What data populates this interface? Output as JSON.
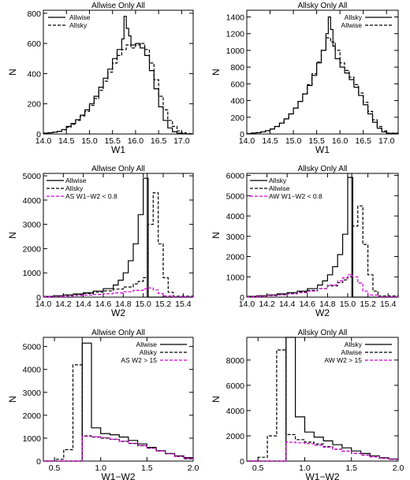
{
  "chart_data": [
    {
      "type": "line",
      "title": "Allwise Only All",
      "xlabel": "W1",
      "ylabel": "N",
      "xlim": [
        14.0,
        17.25
      ],
      "ylim": [
        0,
        820
      ],
      "xticks": [
        14.0,
        14.5,
        15.0,
        15.5,
        16.0,
        16.5,
        17.0
      ],
      "yticks": [
        0,
        200,
        400,
        600,
        800
      ],
      "xtick_labels": [
        "14.0",
        "14.5",
        "15.0",
        "15.5",
        "16.0",
        "16.5",
        "17.0"
      ],
      "ytick_labels": [
        "0",
        "200",
        "400",
        "600",
        "800"
      ],
      "legend_position": "top-left",
      "series": [
        {
          "name": "Allwise",
          "style": "solid",
          "color": "#000000",
          "x": [
            14.0,
            14.1,
            14.2,
            14.3,
            14.4,
            14.5,
            14.6,
            14.7,
            14.8,
            14.9,
            15.0,
            15.1,
            15.2,
            15.3,
            15.4,
            15.5,
            15.6,
            15.7,
            15.75,
            15.8,
            15.85,
            15.9,
            16.0,
            16.1,
            16.2,
            16.3,
            16.4,
            16.5,
            16.6,
            16.7,
            16.8,
            16.9,
            17.0,
            17.1,
            17.25
          ],
          "y": [
            5,
            8,
            12,
            18,
            30,
            50,
            70,
            95,
            125,
            160,
            200,
            250,
            310,
            370,
            430,
            500,
            560,
            630,
            780,
            700,
            650,
            590,
            600,
            570,
            520,
            420,
            300,
            180,
            90,
            40,
            15,
            5,
            2,
            0,
            0
          ]
        },
        {
          "name": "Allsky",
          "style": "dashed",
          "color": "#000000",
          "x": [
            14.0,
            14.1,
            14.2,
            14.3,
            14.4,
            14.5,
            14.6,
            14.7,
            14.8,
            14.9,
            15.0,
            15.1,
            15.2,
            15.3,
            15.4,
            15.5,
            15.6,
            15.7,
            15.8,
            15.9,
            16.0,
            16.1,
            16.2,
            16.3,
            16.4,
            16.5,
            16.6,
            16.7,
            16.8,
            16.9,
            17.0,
            17.1,
            17.25
          ],
          "y": [
            5,
            8,
            12,
            18,
            28,
            45,
            65,
            90,
            120,
            150,
            190,
            235,
            290,
            350,
            410,
            470,
            520,
            560,
            590,
            570,
            590,
            600,
            560,
            470,
            360,
            250,
            160,
            90,
            50,
            20,
            8,
            2,
            0
          ]
        }
      ]
    },
    {
      "type": "line",
      "title": "Allsky Only All",
      "xlabel": "W1",
      "ylabel": "N",
      "xlim": [
        14.0,
        17.25
      ],
      "ylim": [
        0,
        1480
      ],
      "xticks": [
        14.0,
        14.5,
        15.0,
        15.5,
        16.0,
        16.5,
        17.0
      ],
      "yticks": [
        0,
        200,
        400,
        600,
        800,
        1000,
        1200,
        1400
      ],
      "xtick_labels": [
        "14.0",
        "14.5",
        "15.0",
        "15.5",
        "16.0",
        "16.5",
        "17.0"
      ],
      "ytick_labels": [
        "0",
        "200",
        "400",
        "600",
        "800",
        "1000",
        "1200",
        "1400"
      ],
      "legend_position": "top-right",
      "series": [
        {
          "name": "Allsky",
          "style": "solid",
          "color": "#000000",
          "x": [
            14.0,
            14.1,
            14.2,
            14.3,
            14.4,
            14.5,
            14.6,
            14.7,
            14.8,
            14.9,
            15.0,
            15.1,
            15.2,
            15.3,
            15.4,
            15.5,
            15.6,
            15.7,
            15.75,
            15.8,
            15.85,
            15.9,
            16.0,
            16.1,
            16.2,
            16.3,
            16.4,
            16.5,
            16.6,
            16.7,
            16.8,
            16.9,
            17.0,
            17.25
          ],
          "y": [
            5,
            10,
            15,
            25,
            40,
            60,
            90,
            130,
            180,
            240,
            310,
            390,
            480,
            580,
            700,
            850,
            1000,
            1200,
            1400,
            1250,
            1050,
            900,
            800,
            730,
            650,
            560,
            460,
            350,
            240,
            140,
            70,
            25,
            8,
            0
          ]
        },
        {
          "name": "Allwise",
          "style": "dashed",
          "color": "#000000",
          "x": [
            14.0,
            14.1,
            14.2,
            14.3,
            14.4,
            14.5,
            14.6,
            14.7,
            14.8,
            14.9,
            15.0,
            15.1,
            15.2,
            15.3,
            15.4,
            15.5,
            15.6,
            15.7,
            15.8,
            15.9,
            16.0,
            16.1,
            16.2,
            16.3,
            16.4,
            16.5,
            16.6,
            16.7,
            16.8,
            16.9,
            17.0,
            17.25
          ],
          "y": [
            5,
            10,
            15,
            25,
            40,
            60,
            90,
            130,
            180,
            240,
            310,
            390,
            480,
            590,
            720,
            860,
            1000,
            1150,
            1100,
            1000,
            850,
            760,
            680,
            590,
            490,
            380,
            270,
            170,
            90,
            35,
            10,
            0
          ]
        }
      ]
    },
    {
      "type": "line",
      "title": "Allwise Only All",
      "xlabel": "W2",
      "ylabel": "N",
      "xlim": [
        14.0,
        15.5
      ],
      "ylim": [
        0,
        5100
      ],
      "xticks": [
        14.0,
        14.2,
        14.4,
        14.6,
        14.8,
        15.0,
        15.2,
        15.4
      ],
      "yticks": [
        0,
        1000,
        2000,
        3000,
        4000,
        5000
      ],
      "xtick_labels": [
        "14.0",
        "14.2",
        "14.4",
        "14.6",
        "14.8",
        "15.0",
        "15.2",
        "15.4"
      ],
      "ytick_labels": [
        "0",
        "1000",
        "2000",
        "3000",
        "4000",
        "5000"
      ],
      "vline": 15.04,
      "legend_position": "top-left",
      "series": [
        {
          "name": "Allwise",
          "style": "solid",
          "color": "#000000",
          "x": [
            14.0,
            14.1,
            14.2,
            14.3,
            14.4,
            14.5,
            14.6,
            14.7,
            14.75,
            14.8,
            14.85,
            14.9,
            14.95,
            15.0,
            15.05,
            15.1,
            15.5
          ],
          "y": [
            30,
            60,
            90,
            130,
            180,
            250,
            350,
            500,
            700,
            1000,
            1500,
            2200,
            3400,
            4900,
            0,
            0,
            0
          ]
        },
        {
          "name": "Allsky",
          "style": "dashed",
          "color": "#000000",
          "x": [
            14.0,
            14.1,
            14.2,
            14.3,
            14.4,
            14.5,
            14.6,
            14.7,
            14.8,
            14.9,
            14.95,
            15.0,
            15.05,
            15.1,
            15.15,
            15.2,
            15.25,
            15.3,
            15.5
          ],
          "y": [
            25,
            50,
            80,
            110,
            150,
            200,
            260,
            330,
            420,
            550,
            650,
            800,
            3000,
            4300,
            2200,
            800,
            200,
            40,
            0
          ]
        },
        {
          "name": "AS W1−W2 < 0.8",
          "style": "dashed",
          "color": "#d400d4",
          "x": [
            14.0,
            14.1,
            14.2,
            14.3,
            14.4,
            14.5,
            14.6,
            14.7,
            14.8,
            14.9,
            15.0,
            15.05,
            15.1,
            15.15,
            15.2,
            15.3,
            15.5
          ],
          "y": [
            15,
            30,
            45,
            65,
            85,
            110,
            140,
            175,
            220,
            280,
            340,
            380,
            300,
            150,
            50,
            10,
            0
          ]
        }
      ]
    },
    {
      "type": "line",
      "title": "Allsky Only All",
      "xlabel": "W2",
      "ylabel": "N",
      "xlim": [
        14.0,
        15.5
      ],
      "ylim": [
        0,
        6100
      ],
      "xticks": [
        14.0,
        14.2,
        14.4,
        14.6,
        14.8,
        15.0,
        15.2,
        15.4
      ],
      "yticks": [
        0,
        1000,
        2000,
        3000,
        4000,
        5000,
        6000
      ],
      "xtick_labels": [
        "14.0",
        "14.2",
        "14.4",
        "14.6",
        "14.8",
        "15.0",
        "15.2",
        "15.4"
      ],
      "ytick_labels": [
        "0",
        "1000",
        "2000",
        "3000",
        "4000",
        "5000",
        "6000"
      ],
      "vline": 15.04,
      "legend_position": "top-left",
      "series": [
        {
          "name": "Allsky",
          "style": "solid",
          "color": "#000000",
          "x": [
            14.0,
            14.1,
            14.2,
            14.3,
            14.4,
            14.5,
            14.6,
            14.7,
            14.75,
            14.8,
            14.85,
            14.9,
            14.95,
            15.0,
            15.05,
            15.1,
            15.5
          ],
          "y": [
            40,
            70,
            110,
            160,
            220,
            300,
            420,
            600,
            800,
            1100,
            1500,
            2100,
            3100,
            5900,
            0,
            0,
            0
          ]
        },
        {
          "name": "Allwise",
          "style": "dashed",
          "color": "#000000",
          "x": [
            14.0,
            14.1,
            14.2,
            14.3,
            14.4,
            14.5,
            14.6,
            14.7,
            14.8,
            14.9,
            14.95,
            15.0,
            15.05,
            15.1,
            15.15,
            15.2,
            15.25,
            15.3,
            15.5
          ],
          "y": [
            30,
            60,
            95,
            140,
            190,
            250,
            330,
            420,
            550,
            720,
            850,
            1000,
            3500,
            4500,
            2600,
            1100,
            300,
            60,
            0
          ]
        },
        {
          "name": "AW W1−W2 < 0.8",
          "style": "dashed",
          "color": "#d400d4",
          "x": [
            14.0,
            14.1,
            14.2,
            14.3,
            14.4,
            14.5,
            14.6,
            14.7,
            14.8,
            14.9,
            14.95,
            15.0,
            15.05,
            15.1,
            15.15,
            15.2,
            15.3,
            15.5
          ],
          "y": [
            20,
            40,
            70,
            110,
            160,
            220,
            300,
            420,
            600,
            800,
            950,
            1100,
            1000,
            700,
            300,
            100,
            20,
            0
          ]
        }
      ]
    },
    {
      "type": "line",
      "title": "Allwise Only All",
      "xlabel": "W1−W2",
      "ylabel": "N",
      "xlim": [
        0.38,
        2.0
      ],
      "ylim": [
        0,
        5400
      ],
      "xticks": [
        0.5,
        1.0,
        1.5,
        2.0
      ],
      "yticks": [
        0,
        1000,
        2000,
        3000,
        4000,
        5000
      ],
      "xtick_labels": [
        "0.5",
        "1.0",
        "1.5",
        "2.0"
      ],
      "ytick_labels": [
        "0",
        "1000",
        "2000",
        "3000",
        "4000",
        "5000"
      ],
      "vline": 0.8,
      "legend_position": "top-right",
      "series": [
        {
          "name": "Allwise",
          "style": "solid",
          "color": "#000000",
          "x": [
            0.38,
            0.5,
            0.6,
            0.7,
            0.8,
            0.9,
            1.0,
            1.1,
            1.2,
            1.3,
            1.4,
            1.5,
            1.6,
            1.7,
            1.8,
            1.9,
            2.0
          ],
          "y": [
            0,
            0,
            0,
            0,
            5150,
            1450,
            1200,
            1150,
            1050,
            900,
            750,
            600,
            450,
            330,
            230,
            150,
            150
          ]
        },
        {
          "name": "Allsky",
          "style": "dashed",
          "color": "#000000",
          "x": [
            0.38,
            0.45,
            0.5,
            0.6,
            0.7,
            0.8,
            0.9,
            1.0,
            1.1,
            1.2,
            1.3,
            1.4,
            1.5,
            1.6,
            1.7,
            1.8,
            1.9,
            2.0
          ],
          "y": [
            0,
            0,
            80,
            500,
            4200,
            1100,
            1050,
            1000,
            950,
            860,
            770,
            670,
            560,
            440,
            320,
            200,
            100,
            100
          ]
        },
        {
          "name": "AS W2 > 15",
          "style": "dashed",
          "color": "#d400d4",
          "x": [
            0.38,
            0.5,
            0.6,
            0.7,
            0.8,
            0.9,
            1.0,
            1.1,
            1.2,
            1.3,
            1.4,
            1.5,
            1.6,
            1.7,
            1.8,
            1.9,
            2.0
          ],
          "y": [
            0,
            0,
            0,
            0,
            1080,
            1060,
            1020,
            950,
            870,
            780,
            680,
            560,
            440,
            320,
            210,
            120,
            120
          ]
        }
      ]
    },
    {
      "type": "line",
      "title": "Allsky Only All",
      "xlabel": "W1−W2",
      "ylabel": "N",
      "xlim": [
        0.38,
        2.0
      ],
      "ylim": [
        0,
        9800
      ],
      "xticks": [
        0.5,
        1.0,
        1.5,
        2.0
      ],
      "yticks": [
        0,
        2000,
        4000,
        6000,
        8000
      ],
      "xtick_labels": [
        "0.5",
        "1.0",
        "1.5",
        "2.0"
      ],
      "ytick_labels": [
        "0",
        "2000",
        "4000",
        "6000",
        "8000"
      ],
      "vline": 0.8,
      "legend_position": "top-right",
      "series": [
        {
          "name": "Allsky",
          "style": "solid",
          "color": "#000000",
          "x": [
            0.38,
            0.5,
            0.6,
            0.7,
            0.8,
            0.9,
            1.0,
            1.1,
            1.2,
            1.3,
            1.4,
            1.5,
            1.6,
            1.7,
            1.8,
            1.9,
            2.0
          ],
          "y": [
            0,
            0,
            0,
            0,
            9800,
            3500,
            2300,
            1900,
            1600,
            1300,
            1050,
            800,
            600,
            420,
            270,
            170,
            170
          ]
        },
        {
          "name": "Allwise",
          "style": "dashed",
          "color": "#000000",
          "x": [
            0.38,
            0.45,
            0.5,
            0.6,
            0.7,
            0.8,
            0.9,
            1.0,
            1.1,
            1.2,
            1.3,
            1.4,
            1.5,
            1.6,
            1.7,
            1.8,
            1.9,
            2.0
          ],
          "y": [
            0,
            0,
            300,
            2000,
            8800,
            2100,
            1700,
            1500,
            1350,
            1150,
            950,
            780,
            620,
            470,
            340,
            220,
            130,
            130
          ]
        },
        {
          "name": "AW W2 > 15",
          "style": "dashed",
          "color": "#d400d4",
          "x": [
            0.38,
            0.5,
            0.6,
            0.7,
            0.8,
            0.9,
            1.0,
            1.1,
            1.2,
            1.3,
            1.4,
            1.5,
            1.6,
            1.7,
            1.8,
            1.9,
            2.0
          ],
          "y": [
            0,
            0,
            0,
            0,
            1500,
            1450,
            1380,
            1250,
            1100,
            930,
            780,
            620,
            480,
            350,
            230,
            140,
            140
          ]
        }
      ]
    }
  ]
}
